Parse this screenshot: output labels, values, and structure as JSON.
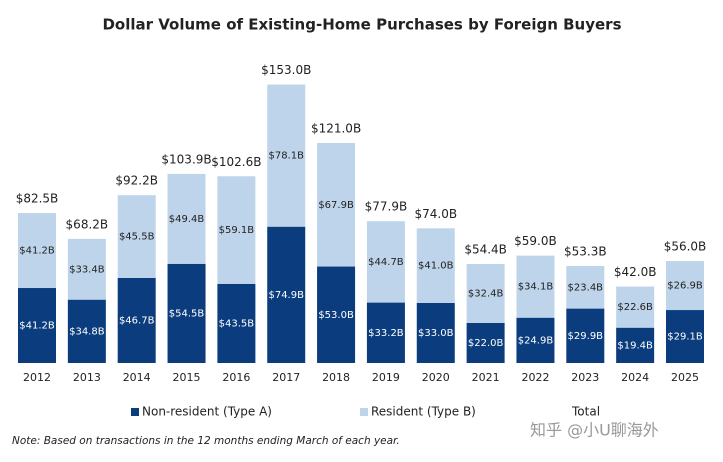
{
  "chart_data": {
    "type": "stacked_bar",
    "title": "Dollar Volume of Existing-Home Purchases by Foreign Buyers",
    "categories": [
      "2012",
      "2013",
      "2014",
      "2015",
      "2016",
      "2017",
      "2018",
      "2019",
      "2020",
      "2021",
      "2022",
      "2023",
      "2024",
      "2025"
    ],
    "series": [
      {
        "name": "Non-resident (Type A)",
        "color": "#0b3d7e",
        "values": [
          41.2,
          34.8,
          46.7,
          54.5,
          43.5,
          74.9,
          53.0,
          33.2,
          33.0,
          22.0,
          24.9,
          29.9,
          19.4,
          29.1
        ],
        "value_labels": [
          "$41.2B",
          "$34.8B",
          "$46.7B",
          "$54.5B",
          "$43.5B",
          "$74.9B",
          "$53.0B",
          "$33.2B",
          "$33.0B",
          "$22.0B",
          "$24.9B",
          "$29.9B",
          "$19.4B",
          "$29.1B"
        ]
      },
      {
        "name": "Resident (Type B)",
        "color": "#bed4ea",
        "values": [
          41.2,
          33.4,
          45.5,
          49.4,
          59.1,
          78.1,
          67.9,
          44.7,
          41.0,
          32.4,
          34.1,
          23.4,
          22.6,
          26.9
        ],
        "value_labels": [
          "$41.2B",
          "$33.4B",
          "$45.5B",
          "$49.4B",
          "$59.1B",
          "$78.1B",
          "$67.9B",
          "$44.7B",
          "$41.0B",
          "$32.4B",
          "$34.1B",
          "$23.4B",
          "$22.6B",
          "$26.9B"
        ]
      },
      {
        "name": "Total",
        "values": [
          82.5,
          68.2,
          92.2,
          103.9,
          102.6,
          153.0,
          121.0,
          77.9,
          74.0,
          54.4,
          59.0,
          53.3,
          42.0,
          56.0
        ],
        "value_labels": [
          "$82.5B",
          "$68.2B",
          "$92.2B",
          "$103.9B",
          "$102.6B",
          "$153.0B",
          "$121.0B",
          "$77.9B",
          "$74.0B",
          "$54.4B",
          "$59.0B",
          "$53.3B",
          "$42.0B",
          "$56.0B"
        ]
      }
    ],
    "note": "Note: Based on transactions in the 12 months ending March of each year.",
    "watermark": "知乎 @小U聊海外"
  }
}
